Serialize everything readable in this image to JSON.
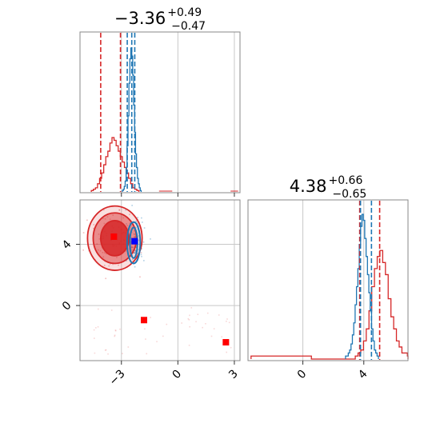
{
  "chart_data": {
    "type": "corner",
    "colors": {
      "blue": "#1f77b4",
      "red": "#d62728",
      "blue_marker": "#0000ff",
      "red_marker": "#ff0000",
      "grid": "#c8c8c8"
    },
    "panels": {
      "top_hist": {
        "type": "histogram",
        "title_value": "−3.36",
        "title_plus": "+0.49",
        "title_minus": "−0.47",
        "xlim": [
          -5.2,
          3.3
        ],
        "vlines_red": [
          -4.1,
          -3.05
        ],
        "vlines_blue": [
          -2.69,
          -2.45,
          -2.29
        ],
        "series": [
          {
            "color": "red",
            "bins_start": -4.6,
            "bin_width": 0.11,
            "counts": [
              1,
              2,
              3,
              6,
              10,
              14,
              20,
              26,
              30,
              36,
              40,
              38,
              34,
              30,
              26,
              22,
              18,
              14,
              10,
              6,
              3,
              2,
              1
            ]
          },
          {
            "color": "blue",
            "bins_start": -2.95,
            "bin_width": 0.05,
            "counts": [
              1,
              2,
              4,
              8,
              18,
              34,
              56,
              80,
              98,
              106,
              100,
              86,
              64,
              44,
              28,
              18,
              10,
              6,
              3,
              1
            ]
          }
        ]
      },
      "scatter2d": {
        "type": "scatter",
        "xlim": [
          -5.2,
          3.3
        ],
        "ylim": [
          -3.6,
          6.9
        ],
        "xticks": [
          "−3",
          "0",
          "3"
        ],
        "xtick_values": [
          -3,
          0,
          3
        ],
        "yticks": [
          "0",
          "4"
        ],
        "ytick_values": [
          0,
          4
        ],
        "markers": [
          {
            "x": -3.4,
            "y": 4.5,
            "color": "red",
            "shape": "square"
          },
          {
            "x": -2.3,
            "y": 4.2,
            "color": "blue",
            "shape": "square"
          },
          {
            "x": -1.8,
            "y": -0.95,
            "color": "red",
            "shape": "square"
          },
          {
            "x": 2.55,
            "y": -2.4,
            "color": "red",
            "shape": "square"
          }
        ],
        "contours_red": [
          {
            "cx": -3.35,
            "cy": 4.4,
            "rx": 0.75,
            "ry": 1.15,
            "opacity": 0.85
          },
          {
            "cx": -3.35,
            "cy": 4.4,
            "rx": 1.15,
            "ry": 1.65,
            "opacity": 0.45
          },
          {
            "cx": -3.35,
            "cy": 4.4,
            "rx": 1.45,
            "ry": 2.1,
            "opacity": 0.15
          }
        ],
        "contours_blue": [
          {
            "cx": -2.35,
            "cy": 4.1,
            "rx": 0.2,
            "ry": 1.0
          },
          {
            "cx": -2.35,
            "cy": 4.1,
            "rx": 0.35,
            "ry": 1.35
          }
        ]
      },
      "right_hist": {
        "type": "histogram",
        "title_value": "4.38",
        "title_plus": "+0.66",
        "title_minus": "−0.65",
        "xlim": [
          -3.6,
          6.9
        ],
        "xticks": [
          "0",
          "4"
        ],
        "xtick_values": [
          0,
          4
        ],
        "vlines_red": [
          3.73,
          5.04
        ],
        "vlines_blue": [
          3.73,
          4.45
        ],
        "series": [
          {
            "color": "red",
            "bins_start": -3.4,
            "bin_width": 0.18,
            "counts": [
              1,
              1,
              1,
              1,
              1,
              1,
              1,
              1,
              1,
              1,
              1,
              1,
              1,
              1,
              1,
              1,
              1,
              1,
              1,
              1,
              1,
              1,
              0,
              0,
              0,
              0,
              0,
              0,
              0,
              0,
              0,
              0,
              0,
              0,
              0,
              0,
              0,
              0,
              1,
              2,
              3,
              6,
              10,
              16,
              24,
              30,
              34,
              36,
              32,
              28,
              20,
              14,
              10,
              6,
              4,
              2,
              2,
              1
            ]
          },
          {
            "color": "blue",
            "bins_start": 2.8,
            "bin_width": 0.09,
            "counts": [
              1,
              1,
              2,
              3,
              5,
              8,
              12,
              18,
              24,
              30,
              38,
              44,
              48,
              46,
              40,
              34,
              28,
              22,
              16,
              10,
              6,
              3,
              2,
              1
            ]
          }
        ]
      }
    }
  }
}
